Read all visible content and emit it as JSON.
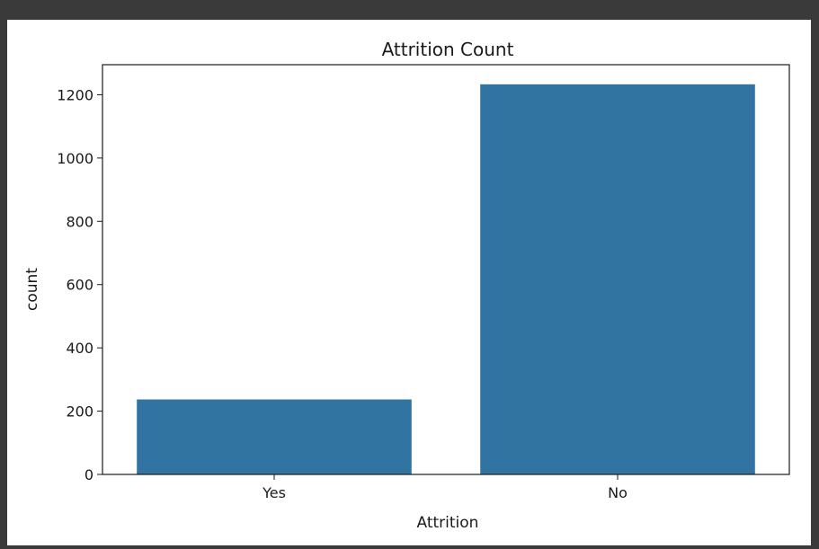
{
  "chart_data": {
    "type": "bar",
    "title": "Attrition Count",
    "xlabel": "Attrition",
    "ylabel": "count",
    "categories": [
      "Yes",
      "No"
    ],
    "values": [
      237,
      1233
    ],
    "ylim": [
      0,
      1295
    ],
    "yticks": [
      0,
      200,
      400,
      600,
      800,
      1000,
      1200
    ],
    "bar_color": "#3274a1",
    "grid": false
  }
}
